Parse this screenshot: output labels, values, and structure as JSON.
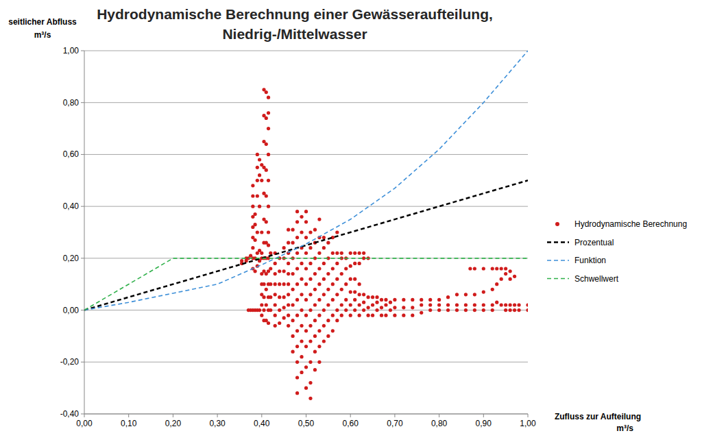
{
  "chart_data": {
    "type": "scatter",
    "title": "Hydrodynamische Berechnung einer Gewässeraufteilung, Niedrig-/Mittelwasser",
    "x_label": "Zufluss zur Aufteilung m³/s",
    "y_label": "seitlicher Abfluss m³/s",
    "xlim": [
      0,
      1
    ],
    "ylim": [
      -0.4,
      1
    ],
    "xticks": [
      {
        "value": 0,
        "label": "0,00"
      },
      {
        "value": 0.1,
        "label": "0,10"
      },
      {
        "value": 0.2,
        "label": "0,20"
      },
      {
        "value": 0.3,
        "label": "0,30"
      },
      {
        "value": 0.4,
        "label": "0,40"
      },
      {
        "value": 0.5,
        "label": "0,50"
      },
      {
        "value": 0.6,
        "label": "0,60"
      },
      {
        "value": 0.7,
        "label": "0,70"
      },
      {
        "value": 0.8,
        "label": "0,80"
      },
      {
        "value": 0.9,
        "label": "0,90"
      },
      {
        "value": 1,
        "label": "1,00"
      }
    ],
    "yticks": [
      {
        "value": -0.4,
        "label": "-0,40"
      },
      {
        "value": -0.2,
        "label": "-0,20"
      },
      {
        "value": 0,
        "label": "0,00"
      },
      {
        "value": 0.2,
        "label": "0,20"
      },
      {
        "value": 0.4,
        "label": "0,40"
      },
      {
        "value": 0.6,
        "label": "0,60"
      },
      {
        "value": 0.8,
        "label": "0,80"
      },
      {
        "value": 1,
        "label": "1,00"
      }
    ],
    "grid": true,
    "legend": "right",
    "series": [
      {
        "name": "Hydrodynamische Berechnung",
        "type": "scatter",
        "marker": "circle",
        "color": "#d01c1c",
        "x": [
          0.355,
          0.355,
          0.365,
          0.365,
          0.37,
          0.37,
          0.375,
          0.375,
          0.38,
          0.38,
          0.38,
          0.38,
          0.38,
          0.38,
          0.38,
          0.38,
          0.38,
          0.38,
          0.385,
          0.385,
          0.385,
          0.385,
          0.385,
          0.385,
          0.39,
          0.39,
          0.39,
          0.39,
          0.39,
          0.39,
          0.39,
          0.39,
          0.395,
          0.395,
          0.395,
          0.395,
          0.395,
          0.395,
          0.4,
          0.4,
          0.4,
          0.4,
          0.4,
          0.4,
          0.4,
          0.4,
          0.4,
          0.4,
          0.405,
          0.405,
          0.405,
          0.405,
          0.405,
          0.405,
          0.405,
          0.405,
          0.405,
          0.405,
          0.405,
          0.405,
          0.405,
          0.41,
          0.41,
          0.41,
          0.41,
          0.41,
          0.41,
          0.41,
          0.41,
          0.41,
          0.41,
          0.41,
          0.41,
          0.415,
          0.415,
          0.415,
          0.415,
          0.415,
          0.415,
          0.415,
          0.415,
          0.415,
          0.415,
          0.415,
          0.415,
          0.415,
          0.415,
          0.42,
          0.42,
          0.42,
          0.42,
          0.42,
          0.43,
          0.43,
          0.43,
          0.43,
          0.43,
          0.43,
          0.43,
          0.43,
          0.44,
          0.44,
          0.44,
          0.44,
          0.44,
          0.44,
          0.45,
          0.45,
          0.45,
          0.45,
          0.45,
          0.45,
          0.45,
          0.46,
          0.46,
          0.46,
          0.46,
          0.46,
          0.46,
          0.46,
          0.46,
          0.46,
          0.46,
          0.47,
          0.47,
          0.47,
          0.47,
          0.47,
          0.47,
          0.47,
          0.47,
          0.47,
          0.48,
          0.48,
          0.48,
          0.48,
          0.48,
          0.48,
          0.48,
          0.48,
          0.48,
          0.48,
          0.48,
          0.48,
          0.48,
          0.49,
          0.49,
          0.49,
          0.49,
          0.49,
          0.49,
          0.49,
          0.49,
          0.49,
          0.49,
          0.49,
          0.5,
          0.5,
          0.5,
          0.5,
          0.5,
          0.5,
          0.5,
          0.5,
          0.5,
          0.5,
          0.5,
          0.5,
          0.51,
          0.51,
          0.51,
          0.51,
          0.51,
          0.51,
          0.51,
          0.51,
          0.51,
          0.51,
          0.51,
          0.52,
          0.52,
          0.52,
          0.52,
          0.52,
          0.52,
          0.52,
          0.52,
          0.52,
          0.52,
          0.53,
          0.53,
          0.53,
          0.53,
          0.53,
          0.53,
          0.53,
          0.53,
          0.53,
          0.53,
          0.54,
          0.54,
          0.54,
          0.54,
          0.54,
          0.54,
          0.54,
          0.54,
          0.55,
          0.55,
          0.55,
          0.55,
          0.55,
          0.55,
          0.55,
          0.56,
          0.56,
          0.56,
          0.56,
          0.56,
          0.56,
          0.56,
          0.57,
          0.57,
          0.57,
          0.57,
          0.57,
          0.57,
          0.57,
          0.58,
          0.58,
          0.58,
          0.58,
          0.58,
          0.58,
          0.59,
          0.59,
          0.59,
          0.59,
          0.59,
          0.6,
          0.6,
          0.6,
          0.6,
          0.6,
          0.6,
          0.61,
          0.61,
          0.61,
          0.61,
          0.61,
          0.61,
          0.62,
          0.62,
          0.62,
          0.62,
          0.62,
          0.62,
          0.63,
          0.63,
          0.63,
          0.63,
          0.63,
          0.64,
          0.64,
          0.64,
          0.64,
          0.65,
          0.65,
          0.65,
          0.66,
          0.66,
          0.66,
          0.67,
          0.67,
          0.67,
          0.68,
          0.68,
          0.68,
          0.69,
          0.69,
          0.7,
          0.7,
          0.7,
          0.72,
          0.72,
          0.72,
          0.74,
          0.74,
          0.74,
          0.76,
          0.76,
          0.76,
          0.78,
          0.78,
          0.78,
          0.8,
          0.8,
          0.8,
          0.82,
          0.82,
          0.82,
          0.84,
          0.84,
          0.84,
          0.86,
          0.86,
          0.86,
          0.87,
          0.88,
          0.88,
          0.88,
          0.88,
          0.9,
          0.9,
          0.9,
          0.9,
          0.92,
          0.92,
          0.92,
          0.92,
          0.93,
          0.93,
          0.93,
          0.94,
          0.94,
          0.94,
          0.95,
          0.95,
          0.95,
          0.95,
          0.96,
          0.96,
          0.96,
          0.96,
          0.97,
          0.97,
          0.97,
          0.98,
          0.98,
          1,
          1
        ],
        "values": [
          0.18,
          0.19,
          0.19,
          0.2,
          0,
          0.2,
          0,
          0.21,
          0,
          0.16,
          0.2,
          0.24,
          0.28,
          0.32,
          0.36,
          0.4,
          0.44,
          0.48,
          0,
          0.15,
          0.2,
          0.27,
          0.33,
          0.37,
          0,
          0.17,
          0.22,
          0.3,
          0.44,
          0.5,
          0.55,
          0.6,
          0,
          0.19,
          0.23,
          0.4,
          0.52,
          0.58,
          -0.02,
          0.02,
          0.06,
          0.1,
          0.14,
          0.2,
          0.22,
          0.3,
          0.5,
          0.56,
          -0.04,
          0,
          0.05,
          0.1,
          0.15,
          0.2,
          0.26,
          0.35,
          0.45,
          0.55,
          0.65,
          0.75,
          0.85,
          -0.04,
          0.02,
          0.08,
          0.14,
          0.2,
          0.26,
          0.34,
          0.44,
          0.54,
          0.64,
          0.74,
          0.84,
          -0.05,
          0,
          0.05,
          0.1,
          0.15,
          0.2,
          0.25,
          0.3,
          0.4,
          0.5,
          0.6,
          0.7,
          0.76,
          0.82,
          0,
          0.05,
          0.1,
          0.16,
          0.22,
          -0.06,
          -0.02,
          0.02,
          0.06,
          0.1,
          0.14,
          0.18,
          0.22,
          -0.05,
          0,
          0.05,
          0.1,
          0.15,
          0.2,
          -0.03,
          0.01,
          0.05,
          0.1,
          0.15,
          0.2,
          0.24,
          -0.06,
          -0.02,
          0.02,
          0.06,
          0.1,
          0.14,
          0.18,
          0.22,
          0.26,
          0.31,
          -0.16,
          -0.1,
          -0.04,
          0.02,
          0.08,
          0.14,
          0.2,
          0.26,
          0.31,
          -0.32,
          -0.26,
          -0.2,
          -0.14,
          -0.08,
          -0.02,
          0.04,
          0.1,
          0.16,
          0.22,
          0.28,
          0.34,
          0.38,
          -0.24,
          -0.18,
          -0.12,
          -0.06,
          0,
          0.06,
          0.12,
          0.18,
          0.24,
          0.3,
          0.36,
          -0.3,
          -0.22,
          -0.14,
          -0.08,
          -0.02,
          0.04,
          0.1,
          0.16,
          0.22,
          0.28,
          0.34,
          0.38,
          -0.34,
          -0.28,
          -0.2,
          -0.12,
          -0.06,
          0,
          0.06,
          0.12,
          0.18,
          0.24,
          0.3,
          -0.23,
          -0.16,
          -0.1,
          -0.04,
          0.02,
          0.08,
          0.14,
          0.2,
          0.26,
          0.31,
          -0.2,
          -0.14,
          -0.08,
          -0.02,
          0.04,
          0.1,
          0.16,
          0.22,
          0.28,
          0.35,
          -0.12,
          -0.06,
          0,
          0.06,
          0.12,
          0.18,
          0.24,
          0.28,
          -0.1,
          -0.04,
          0.02,
          0.08,
          0.14,
          0.2,
          0.26,
          -0.08,
          -0.02,
          0.04,
          0.1,
          0.16,
          0.22,
          0.28,
          -0.04,
          0,
          0.06,
          0.12,
          0.18,
          0.22,
          0.3,
          -0.02,
          0.02,
          0.08,
          0.14,
          0.2,
          0.22,
          0,
          0.04,
          0.1,
          0.16,
          0.2,
          -0.02,
          0.02,
          0.07,
          0.12,
          0.17,
          0.22,
          0,
          0.04,
          0.07,
          0.12,
          0.18,
          0.22,
          -0.02,
          0.02,
          0.06,
          0.1,
          0.18,
          0.22,
          0,
          0.03,
          0.06,
          0.2,
          0.22,
          -0.02,
          0.01,
          0.05,
          0.2,
          -0.02,
          0.02,
          0.05,
          0,
          0.03,
          0.05,
          -0.02,
          0.01,
          0.04,
          -0.02,
          0.02,
          0.04,
          0,
          0.03,
          -0.02,
          0.01,
          0.04,
          -0.02,
          0.01,
          0.04,
          -0.02,
          0.01,
          0.04,
          -0.01,
          0.02,
          0.04,
          0,
          0.02,
          0.04,
          0,
          0.02,
          0.04,
          0,
          0.02,
          0.05,
          0,
          0.02,
          0.06,
          0,
          0.02,
          0.06,
          0.16,
          0,
          0.02,
          0.06,
          0.16,
          0,
          0.02,
          0.07,
          0.16,
          0,
          0.02,
          0.08,
          0.16,
          0.03,
          0.1,
          0.16,
          0.02,
          0.12,
          0.16,
          0,
          0.02,
          0.14,
          0.16,
          0,
          0.02,
          0.12,
          0.15,
          0,
          0.02,
          0.13,
          0,
          0.02,
          0,
          0.02
        ]
      },
      {
        "name": "Prozentual",
        "type": "line",
        "line_style": "dashed",
        "color": "#000000",
        "x": [
          0,
          1
        ],
        "values": [
          0,
          0.5
        ]
      },
      {
        "name": "Funktion",
        "type": "line",
        "line_style": "dashed",
        "color": "#3d8fd8",
        "x": [
          0,
          0.1,
          0.2,
          0.3,
          0.4,
          0.5,
          0.6,
          0.7,
          0.8,
          0.9,
          1
        ],
        "values": [
          0,
          0.03,
          0.065,
          0.1,
          0.175,
          0.255,
          0.35,
          0.47,
          0.62,
          0.8,
          1
        ]
      },
      {
        "name": "Schwellwert",
        "type": "line",
        "line_style": "dashed",
        "color": "#2fb04a",
        "x": [
          0,
          0.2,
          1
        ],
        "values": [
          0,
          0.2,
          0.2
        ]
      }
    ]
  }
}
